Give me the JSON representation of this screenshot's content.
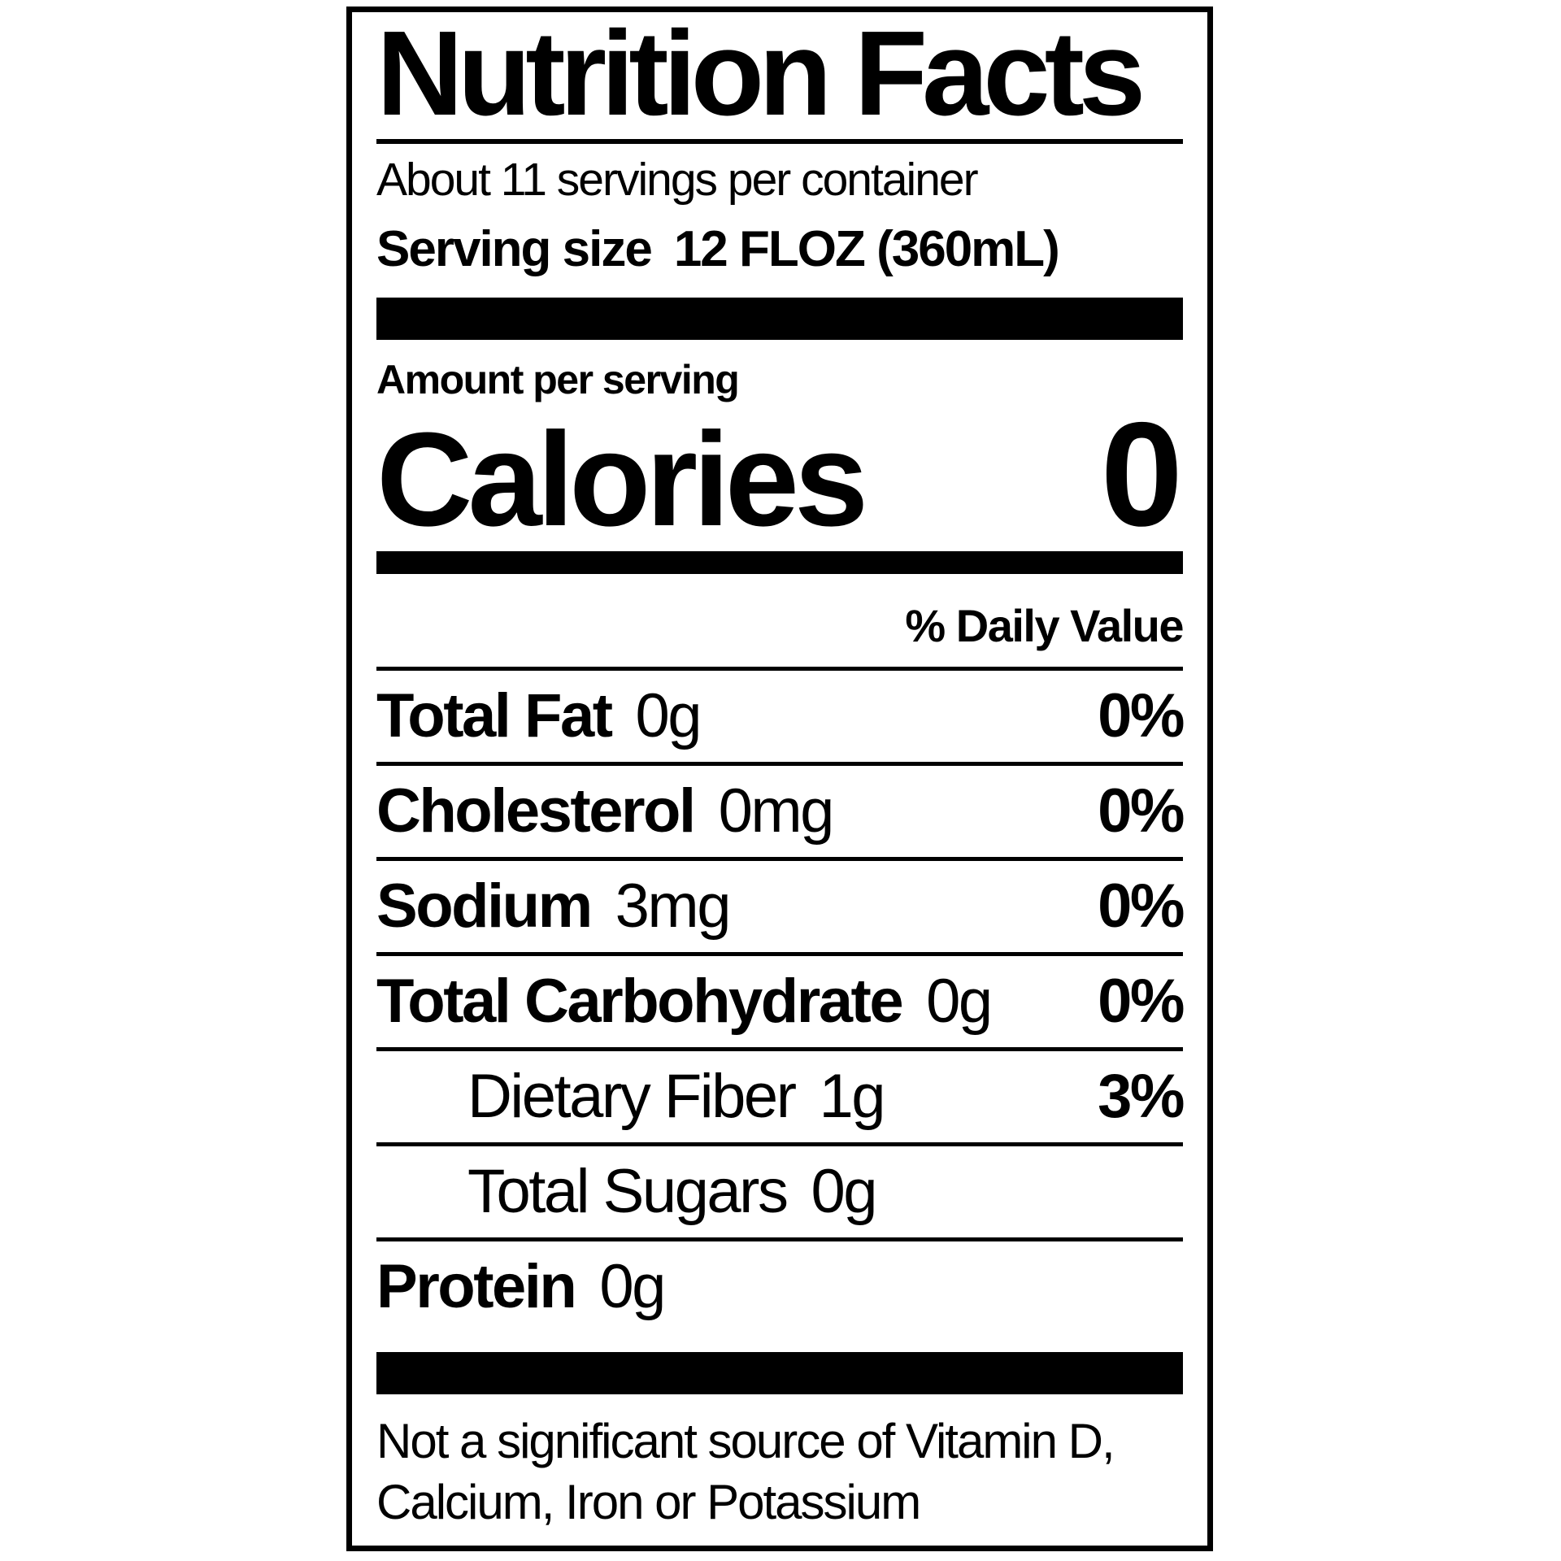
{
  "label": {
    "title": "Nutrition Facts",
    "servings_per_container": "About 11 servings per container",
    "serving_size_label": "Serving size",
    "serving_size_value": "12 FLOZ (360mL)",
    "amount_per_serving": "Amount per serving",
    "calories_label": "Calories",
    "calories_value": "0",
    "daily_value_header": "% Daily Value",
    "nutrient_rows": [
      {
        "name": "Total Fat",
        "amount": "0g",
        "dv": "0%",
        "bold_name": true,
        "indent": false
      },
      {
        "name": "Cholesterol",
        "amount": "0mg",
        "dv": "0%",
        "bold_name": true,
        "indent": false
      },
      {
        "name": "Sodium",
        "amount": "3mg",
        "dv": "0%",
        "bold_name": true,
        "indent": false
      },
      {
        "name": "Total Carbohydrate",
        "amount": "0g",
        "dv": "0%",
        "bold_name": true,
        "indent": false
      },
      {
        "name": "Dietary Fiber",
        "amount": "1g",
        "dv": "3%",
        "bold_name": false,
        "indent": true
      },
      {
        "name": "Total Sugars",
        "amount": "0g",
        "dv": "",
        "bold_name": false,
        "indent": true
      },
      {
        "name": "Protein",
        "amount": "0g",
        "dv": "",
        "bold_name": true,
        "indent": false
      }
    ],
    "footnote_line1": "Not a significant source of Vitamin D,",
    "footnote_line2": "Calcium, Iron or Potassium",
    "colors": {
      "ink": "#000000",
      "background": "#ffffff"
    }
  }
}
